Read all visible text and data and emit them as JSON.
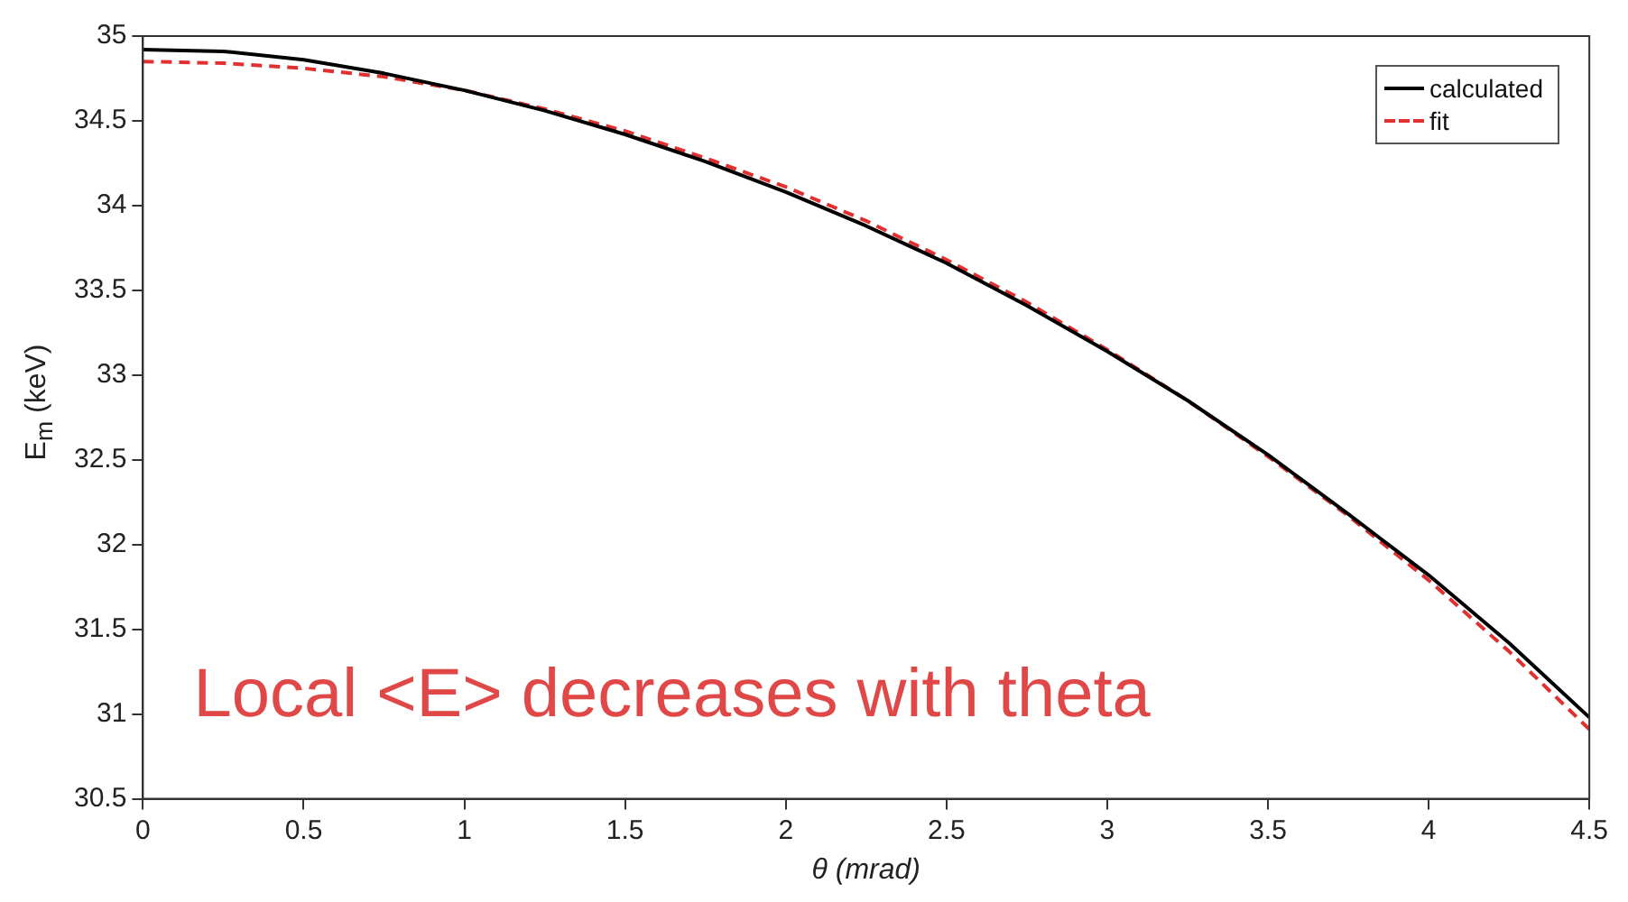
{
  "chart_data": {
    "type": "line",
    "xlabel": "θ (mrad)",
    "ylabel": "E$_{m}$ (keV)",
    "xlim": [
      0,
      4.5
    ],
    "xticks": [
      0,
      0.5,
      1,
      1.5,
      2,
      2.5,
      3,
      3.5,
      4,
      4.5
    ],
    "ylim": [
      30.5,
      35
    ],
    "yticks": [
      30.5,
      31,
      31.5,
      32,
      32.5,
      33,
      33.5,
      34,
      34.5,
      35
    ],
    "grid": false,
    "legend": "top right",
    "marker": "none",
    "x": [
      0,
      0.25,
      0.5,
      0.75,
      1,
      1.25,
      1.5,
      1.75,
      2,
      2.25,
      2.5,
      2.75,
      3,
      3.25,
      3.5,
      3.75,
      4,
      4.25,
      4.5
    ],
    "series": [
      {
        "name": "calculated",
        "color": "#000000",
        "line_style": "solid",
        "values": [
          34.92,
          34.91,
          34.86,
          34.78,
          34.68,
          34.56,
          34.42,
          34.26,
          34.08,
          33.88,
          33.66,
          33.41,
          33.14,
          32.85,
          32.53,
          32.18,
          31.82,
          31.42,
          30.98
        ]
      },
      {
        "name": "fit",
        "color": "#e03030",
        "line_style": "dashed",
        "values": [
          34.85,
          34.84,
          34.81,
          34.76,
          34.68,
          34.57,
          34.44,
          34.28,
          34.11,
          33.91,
          33.68,
          33.43,
          33.15,
          32.85,
          32.52,
          32.17,
          31.79,
          31.37,
          30.91
        ]
      }
    ],
    "annotations": [
      "Local <E> decreases with theta"
    ]
  }
}
